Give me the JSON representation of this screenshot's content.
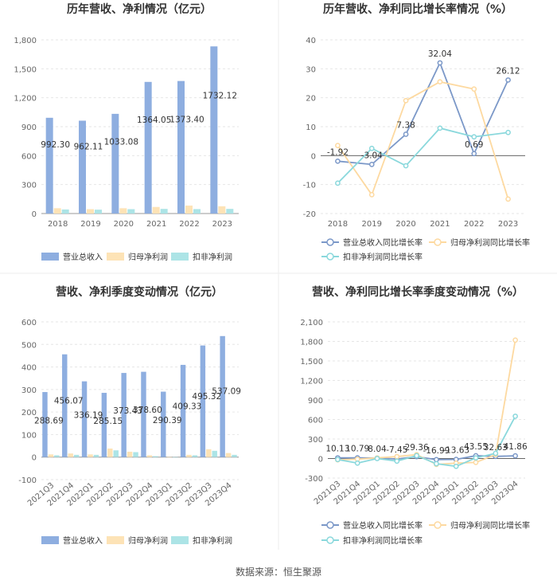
{
  "footer": {
    "source": "数据来源：恒生聚源"
  },
  "chart_data": [
    {
      "type": "bar",
      "title": "历年营收、净利情况（亿元）",
      "categories": [
        "2018",
        "2019",
        "2020",
        "2021",
        "2022",
        "2023"
      ],
      "ylim": [
        0,
        1800
      ],
      "yticks": [
        0,
        300,
        600,
        900,
        "1,200",
        "1,500",
        "1,800"
      ],
      "series": [
        {
          "name": "营业总收入",
          "color": "#8eaee0",
          "values": [
            992.3,
            962.11,
            1033.08,
            1364.05,
            1373.4,
            1732.12
          ],
          "labels": [
            "992.30",
            "962.11",
            "1033.08",
            "1364.05",
            "1373.40",
            "1732.12"
          ]
        },
        {
          "name": "归母净利润",
          "color": "#fde3b6",
          "values": [
            55,
            45,
            55,
            68,
            82,
            75
          ]
        },
        {
          "name": "扣非净利润",
          "color": "#ace4e6",
          "values": [
            42,
            40,
            45,
            48,
            46,
            48
          ]
        }
      ]
    },
    {
      "type": "line",
      "title": "历年营收、净利同比增长率情况（%）",
      "categories": [
        "2018",
        "2019",
        "2020",
        "2021",
        "2022",
        "2023"
      ],
      "ylim": [
        -20,
        40
      ],
      "yticks": [
        -20,
        -10,
        0,
        10,
        20,
        30,
        40
      ],
      "series": [
        {
          "name": "营业总收入同比增长率",
          "color": "#7b98c8",
          "values": [
            -1.92,
            -3.04,
            7.38,
            32.04,
            0.69,
            26.12
          ],
          "labels": [
            "-1.92",
            "-3.04",
            "7.38",
            "32.04",
            "0.69",
            "26.12"
          ]
        },
        {
          "name": "归母净利润同比增长率",
          "color": "#fdd9a0",
          "values": [
            3.5,
            -13.5,
            19.0,
            25.5,
            23.0,
            -15.0
          ]
        },
        {
          "name": "扣非净利润同比增长率",
          "color": "#8ad8dc",
          "values": [
            -9.5,
            2.5,
            -3.5,
            9.5,
            6.5,
            8.0
          ]
        }
      ]
    },
    {
      "type": "bar",
      "title": "营收、净利季度变动情况（亿元）",
      "categories": [
        "2021Q3",
        "2021Q4",
        "2022Q1",
        "2022Q2",
        "2022Q3",
        "2022Q4",
        "2023Q1",
        "2023Q2",
        "2023Q3",
        "2023Q4"
      ],
      "ylim": [
        -100,
        600
      ],
      "yticks": [
        -100,
        0,
        100,
        200,
        300,
        400,
        500,
        600
      ],
      "series": [
        {
          "name": "营业总收入",
          "color": "#8eaee0",
          "values": [
            288.69,
            456.07,
            336.19,
            285.15,
            373.43,
            378.6,
            290.39,
            409.33,
            495.32,
            537.09
          ],
          "labels": [
            "288.69",
            "456.07",
            "336.19",
            "285.15",
            "373.43",
            "378.60",
            "290.39",
            "409.33",
            "495.32",
            "537.09"
          ]
        },
        {
          "name": "归母净利润",
          "color": "#fde3b6",
          "values": [
            12,
            16,
            12,
            38,
            24,
            8,
            0,
            10,
            35,
            18
          ]
        },
        {
          "name": "扣非净利润",
          "color": "#ace4e6",
          "values": [
            8,
            10,
            10,
            30,
            22,
            4,
            0,
            8,
            28,
            10
          ]
        }
      ]
    },
    {
      "type": "line",
      "title": "营收、净利同比增长率季度变动情况（%）",
      "categories": [
        "2021Q3",
        "2021Q4",
        "2022Q1",
        "2022Q2",
        "2022Q3",
        "2022Q4",
        "2023Q1",
        "2023Q2",
        "2023Q3",
        "2023Q4"
      ],
      "ylim": [
        -300,
        2100
      ],
      "yticks": [
        -300,
        0,
        300,
        600,
        900,
        "1,200",
        "1,500",
        "1,800",
        "2,100"
      ],
      "series": [
        {
          "name": "营业总收入同比增长率",
          "color": "#7b98c8",
          "values": [
            10.13,
            10.79,
            8.04,
            -7.45,
            29.36,
            -16.99,
            -13.63,
            43.55,
            32.63,
            41.86
          ],
          "labels": [
            "10.13",
            "10.79",
            "8.04",
            "-7.45",
            "29.36",
            "-16.99",
            "-13.63",
            "43.55",
            "32.63",
            "41.86"
          ]
        },
        {
          "name": "归母净利润同比增长率",
          "color": "#fdd9a0",
          "values": [
            -20,
            -10,
            10,
            30,
            60,
            -90,
            -70,
            -60,
            60,
            1820
          ]
        },
        {
          "name": "扣非净利润同比增长率",
          "color": "#8ad8dc",
          "values": [
            -15,
            -70,
            0,
            -40,
            45,
            -80,
            -120,
            10,
            80,
            650
          ]
        }
      ]
    }
  ]
}
